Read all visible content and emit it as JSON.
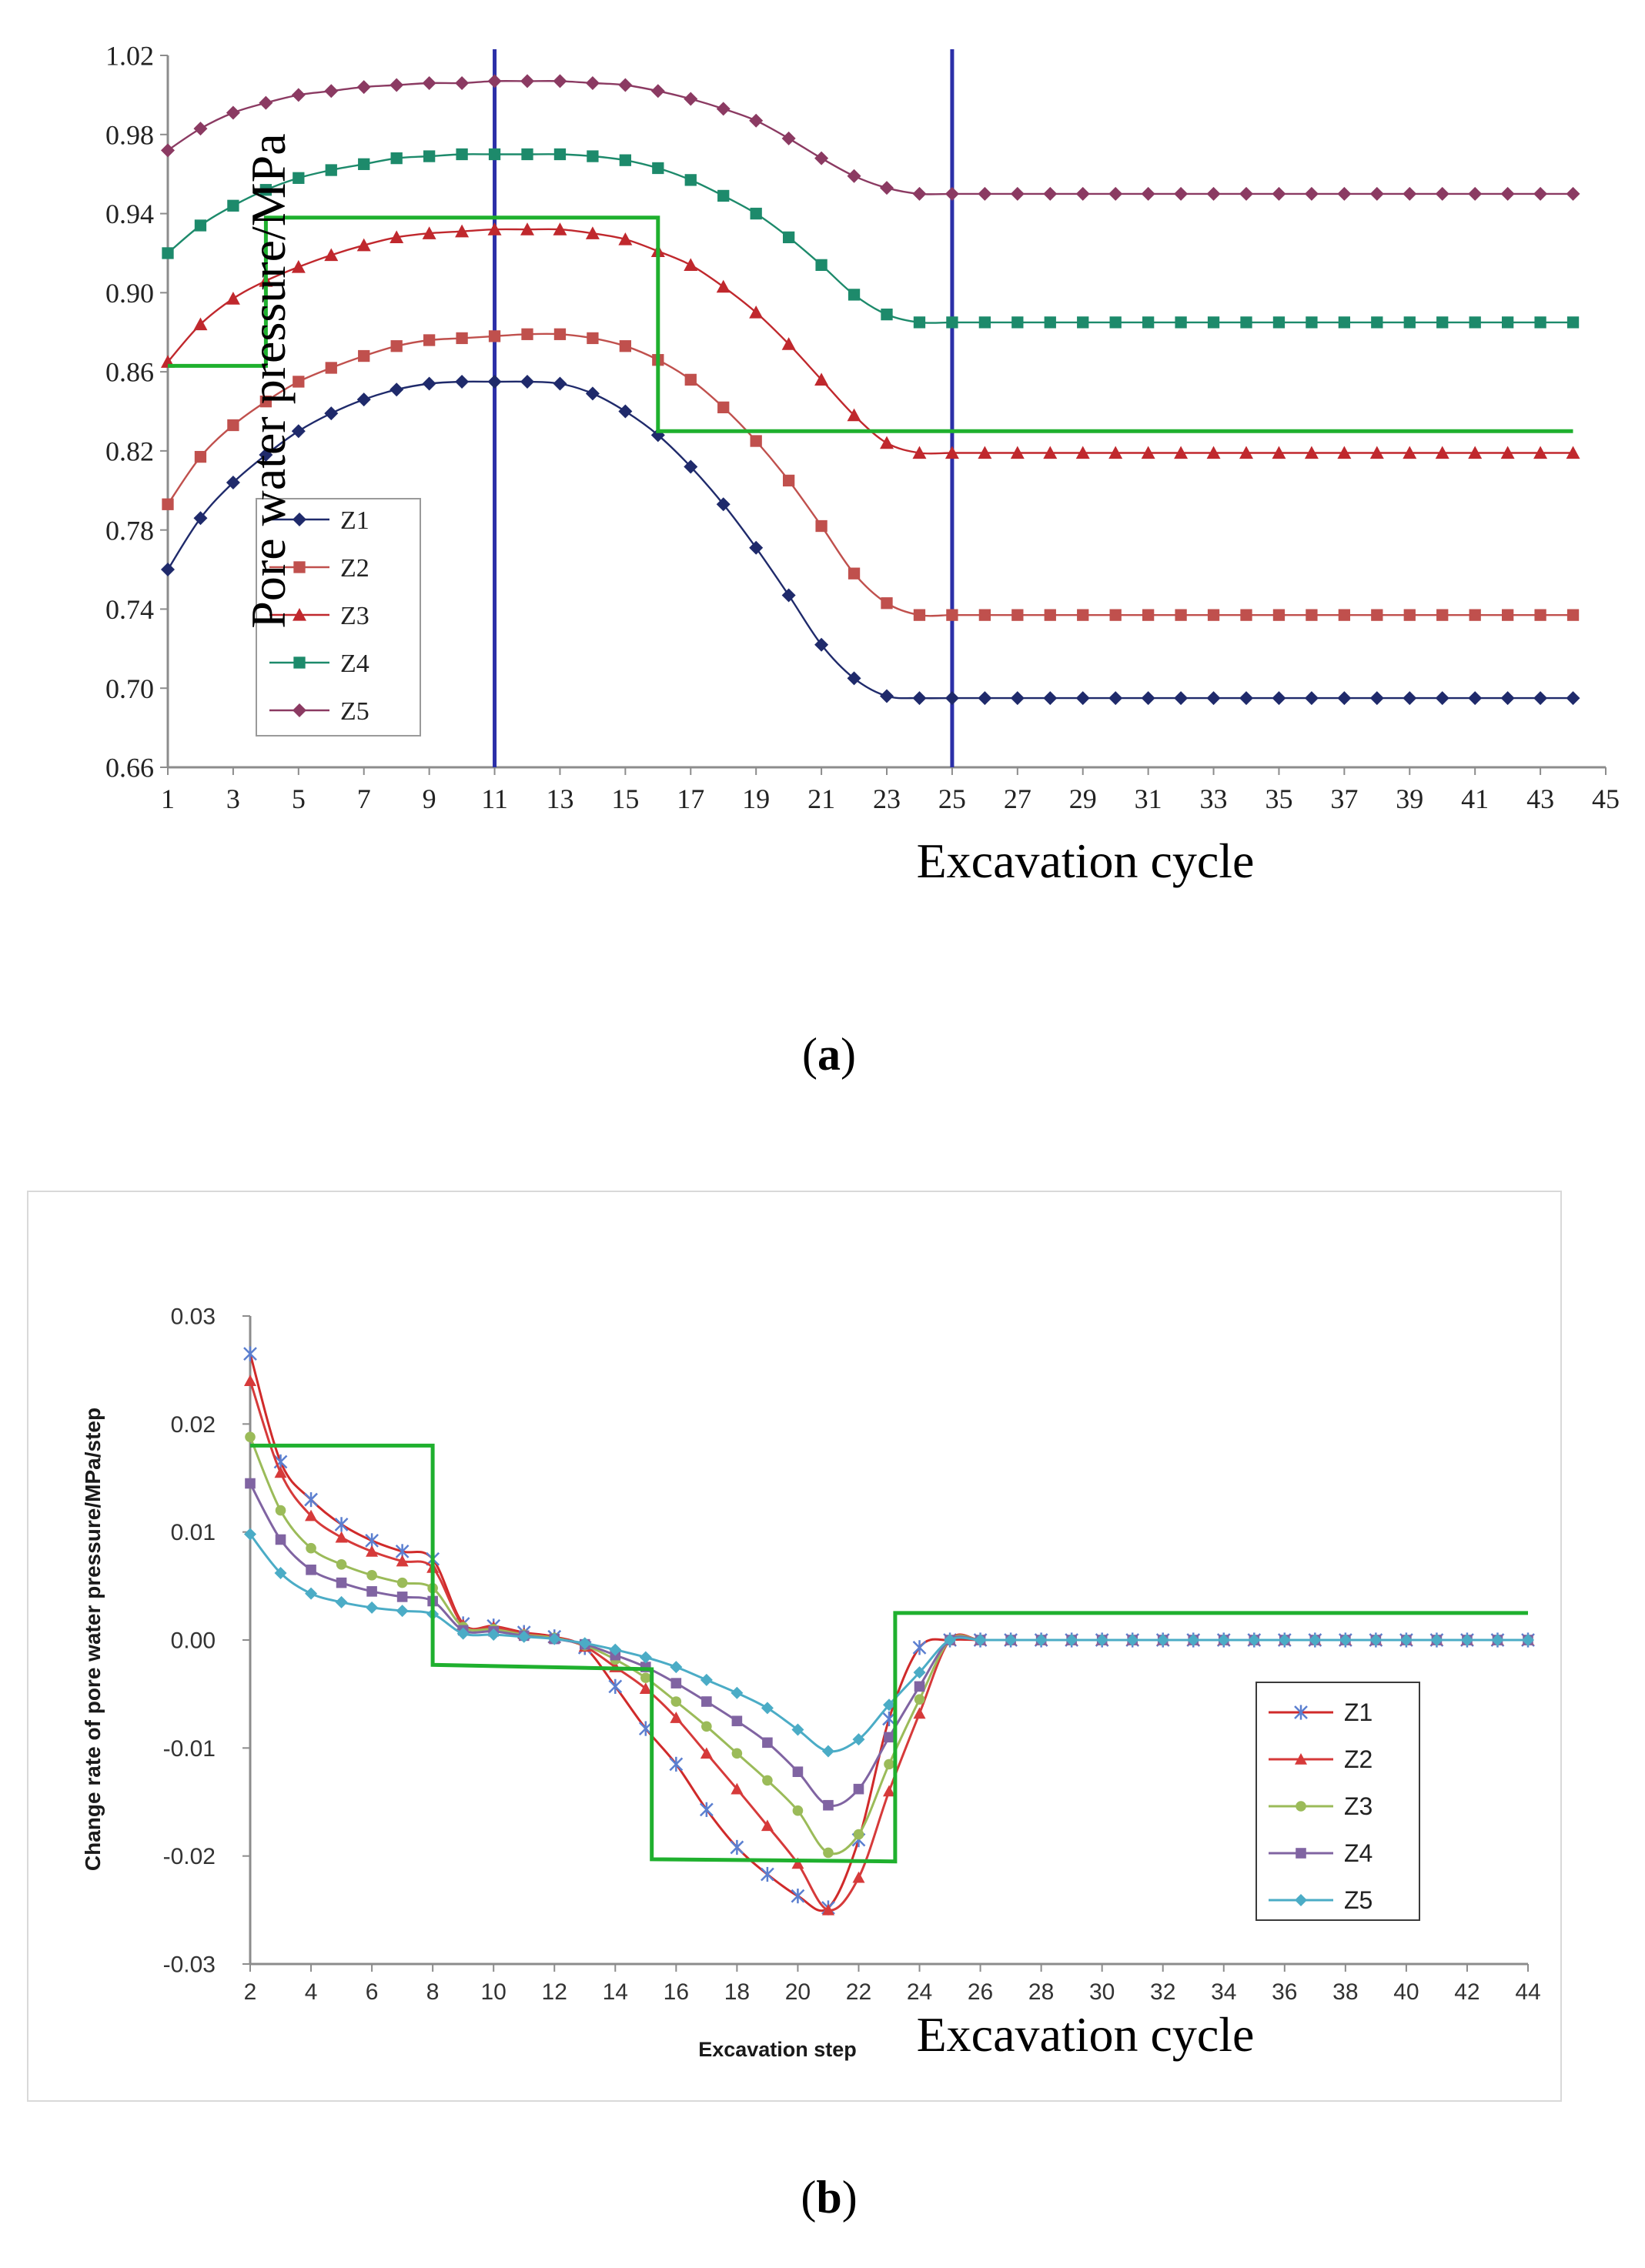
{
  "chart_data": [
    {
      "type": "line",
      "panel_label": "a",
      "caption_open": "(",
      "caption_close": ")",
      "ylabel": "Pore water pressure/MPa",
      "xlabel": "Excavation cycle",
      "xlim": [
        1,
        45
      ],
      "ylim": [
        0.66,
        1.02
      ],
      "x_ticks": [
        "1",
        "3",
        "5",
        "7",
        "9",
        "11",
        "13",
        "15",
        "17",
        "19",
        "21",
        "23",
        "25",
        "27",
        "29",
        "31",
        "33",
        "35",
        "37",
        "39",
        "41",
        "43",
        "45"
      ],
      "y_ticks": [
        "0.66",
        "0.70",
        "0.74",
        "0.78",
        "0.82",
        "0.86",
        "0.90",
        "0.94",
        "0.98",
        "1.02"
      ],
      "x": [
        1,
        2,
        3,
        4,
        5,
        6,
        7,
        8,
        9,
        10,
        11,
        12,
        13,
        14,
        15,
        16,
        17,
        18,
        19,
        20,
        21,
        22,
        23,
        24,
        25,
        26,
        27,
        28,
        29,
        30,
        31,
        32,
        33,
        34,
        35,
        36,
        37,
        38,
        39,
        40,
        41,
        42,
        43,
        44
      ],
      "vlines": [
        11,
        25
      ],
      "step_line": {
        "x": [
          1,
          4,
          4,
          16,
          16,
          44
        ],
        "y": [
          0.863,
          0.863,
          0.938,
          0.938,
          0.83,
          0.83
        ],
        "color": "#1fb02e"
      },
      "legend_position": "lower-left",
      "series": [
        {
          "name": "Z1",
          "color": "#1f2a6b",
          "marker": "diamond",
          "values": [
            0.76,
            0.786,
            0.804,
            0.818,
            0.83,
            0.839,
            0.846,
            0.851,
            0.854,
            0.855,
            0.855,
            0.855,
            0.854,
            0.849,
            0.84,
            0.828,
            0.812,
            0.793,
            0.771,
            0.747,
            0.722,
            0.705,
            0.696,
            0.695,
            0.695,
            0.695,
            0.695,
            0.695,
            0.695,
            0.695,
            0.695,
            0.695,
            0.695,
            0.695,
            0.695,
            0.695,
            0.695,
            0.695,
            0.695,
            0.695,
            0.695,
            0.695,
            0.695,
            0.695
          ]
        },
        {
          "name": "Z2",
          "color": "#c0504d",
          "marker": "square",
          "values": [
            0.793,
            0.817,
            0.833,
            0.845,
            0.855,
            0.862,
            0.868,
            0.873,
            0.876,
            0.877,
            0.878,
            0.879,
            0.879,
            0.877,
            0.873,
            0.866,
            0.856,
            0.842,
            0.825,
            0.805,
            0.782,
            0.758,
            0.743,
            0.737,
            0.737,
            0.737,
            0.737,
            0.737,
            0.737,
            0.737,
            0.737,
            0.737,
            0.737,
            0.737,
            0.737,
            0.737,
            0.737,
            0.737,
            0.737,
            0.737,
            0.737,
            0.737,
            0.737,
            0.737
          ]
        },
        {
          "name": "Z3",
          "color": "#c0282d",
          "marker": "triangle",
          "values": [
            0.865,
            0.884,
            0.897,
            0.906,
            0.913,
            0.919,
            0.924,
            0.928,
            0.93,
            0.931,
            0.932,
            0.932,
            0.932,
            0.93,
            0.927,
            0.921,
            0.914,
            0.903,
            0.89,
            0.874,
            0.856,
            0.838,
            0.824,
            0.819,
            0.819,
            0.819,
            0.819,
            0.819,
            0.819,
            0.819,
            0.819,
            0.819,
            0.819,
            0.819,
            0.819,
            0.819,
            0.819,
            0.819,
            0.819,
            0.819,
            0.819,
            0.819,
            0.819,
            0.819
          ]
        },
        {
          "name": "Z4",
          "color": "#1d8a6b",
          "marker": "square",
          "values": [
            0.92,
            0.934,
            0.944,
            0.952,
            0.958,
            0.962,
            0.965,
            0.968,
            0.969,
            0.97,
            0.97,
            0.97,
            0.97,
            0.969,
            0.967,
            0.963,
            0.957,
            0.949,
            0.94,
            0.928,
            0.914,
            0.899,
            0.889,
            0.885,
            0.885,
            0.885,
            0.885,
            0.885,
            0.885,
            0.885,
            0.885,
            0.885,
            0.885,
            0.885,
            0.885,
            0.885,
            0.885,
            0.885,
            0.885,
            0.885,
            0.885,
            0.885,
            0.885,
            0.885
          ]
        },
        {
          "name": "Z5",
          "color": "#8b3a62",
          "marker": "diamond",
          "values": [
            0.972,
            0.983,
            0.991,
            0.996,
            1.0,
            1.002,
            1.004,
            1.005,
            1.006,
            1.006,
            1.007,
            1.007,
            1.007,
            1.006,
            1.005,
            1.002,
            0.998,
            0.993,
            0.987,
            0.978,
            0.968,
            0.959,
            0.953,
            0.95,
            0.95,
            0.95,
            0.95,
            0.95,
            0.95,
            0.95,
            0.95,
            0.95,
            0.95,
            0.95,
            0.95,
            0.95,
            0.95,
            0.95,
            0.95,
            0.95,
            0.95,
            0.95,
            0.95,
            0.95
          ]
        }
      ]
    },
    {
      "type": "line",
      "panel_label": "b",
      "caption_open": "(",
      "caption_close": ")",
      "ylabel": "Change rate of pore water pressure/MPa/step",
      "xlabel": "Excavation step",
      "xlabel_overlay": "Excavation cycle",
      "xlim": [
        2,
        44
      ],
      "ylim": [
        -0.03,
        0.03
      ],
      "x_ticks": [
        "2",
        "4",
        "6",
        "8",
        "10",
        "12",
        "14",
        "16",
        "18",
        "20",
        "22",
        "24",
        "26",
        "28",
        "30",
        "32",
        "34",
        "36",
        "38",
        "40",
        "42",
        "44"
      ],
      "y_ticks": [
        "-0.03",
        "-0.02",
        "-0.01",
        "0.00",
        "0.01",
        "0.02",
        "0.03"
      ],
      "x": [
        2,
        3,
        4,
        5,
        6,
        7,
        8,
        9,
        10,
        11,
        12,
        13,
        14,
        15,
        16,
        17,
        18,
        19,
        20,
        21,
        22,
        23,
        24,
        25,
        26,
        27,
        28,
        29,
        30,
        31,
        32,
        33,
        34,
        35,
        36,
        37,
        38,
        39,
        40,
        41,
        42,
        43,
        44
      ],
      "step_line": {
        "x": [
          2,
          8,
          8,
          15.2,
          15.2,
          23.2,
          23.2,
          44
        ],
        "y": [
          0.018,
          0.018,
          -0.0023,
          -0.0027,
          -0.0203,
          -0.0205,
          0.0025,
          0.0025
        ],
        "color": "#1fb02e"
      },
      "legend_position": "lower-right",
      "series": [
        {
          "name": "Z1",
          "color": "#d02a2a",
          "marker": "star",
          "marker_color": "#5b7fd0",
          "values": [
            0.0265,
            0.0165,
            0.013,
            0.0107,
            0.0092,
            0.0082,
            0.0075,
            0.0015,
            0.0013,
            0.0007,
            0.0003,
            -0.0007,
            -0.0043,
            -0.0082,
            -0.0115,
            -0.0157,
            -0.0192,
            -0.0217,
            -0.0237,
            -0.0248,
            -0.0185,
            -0.0073,
            -0.0007,
            0,
            0,
            0,
            0,
            0,
            0,
            0,
            0,
            0,
            0,
            0,
            0,
            0,
            0,
            0,
            0,
            0,
            0,
            0,
            0
          ]
        },
        {
          "name": "Z2",
          "color": "#d63a3a",
          "marker": "triangle",
          "values": [
            0.024,
            0.0155,
            0.0115,
            0.0095,
            0.0082,
            0.0073,
            0.0067,
            0.0014,
            0.0012,
            0.0006,
            0.0002,
            -0.0006,
            -0.0025,
            -0.0045,
            -0.0072,
            -0.0105,
            -0.0138,
            -0.0172,
            -0.0207,
            -0.025,
            -0.022,
            -0.014,
            -0.0068,
            0,
            0,
            0,
            0,
            0,
            0,
            0,
            0,
            0,
            0,
            0,
            0,
            0,
            0,
            0,
            0,
            0,
            0,
            0,
            0
          ]
        },
        {
          "name": "Z3",
          "color": "#9bbb59",
          "marker": "circle",
          "values": [
            0.0188,
            0.012,
            0.0085,
            0.007,
            0.006,
            0.0053,
            0.0048,
            0.0012,
            0.001,
            0.0005,
            0.0002,
            -0.0005,
            -0.0018,
            -0.0035,
            -0.0057,
            -0.008,
            -0.0105,
            -0.013,
            -0.0158,
            -0.0197,
            -0.018,
            -0.0115,
            -0.0055,
            0,
            0,
            0,
            0,
            0,
            0,
            0,
            0,
            0,
            0,
            0,
            0,
            0,
            0,
            0,
            0,
            0,
            0,
            0,
            0
          ]
        },
        {
          "name": "Z4",
          "color": "#8064a2",
          "marker": "square",
          "values": [
            0.0145,
            0.0093,
            0.0065,
            0.0053,
            0.0045,
            0.004,
            0.0036,
            0.0009,
            0.0008,
            0.0004,
            0.0001,
            -0.0004,
            -0.0014,
            -0.0025,
            -0.004,
            -0.0057,
            -0.0075,
            -0.0095,
            -0.0122,
            -0.0153,
            -0.0138,
            -0.009,
            -0.0043,
            0,
            0,
            0,
            0,
            0,
            0,
            0,
            0,
            0,
            0,
            0,
            0,
            0,
            0,
            0,
            0,
            0,
            0,
            0,
            0
          ]
        },
        {
          "name": "Z5",
          "color": "#4bacc6",
          "marker": "diamond",
          "values": [
            0.0098,
            0.0062,
            0.0043,
            0.0035,
            0.003,
            0.0027,
            0.0024,
            0.0006,
            0.0005,
            0.0003,
            0.0001,
            -0.0003,
            -0.0009,
            -0.0016,
            -0.0025,
            -0.0037,
            -0.0049,
            -0.0063,
            -0.0083,
            -0.0103,
            -0.0092,
            -0.006,
            -0.003,
            0,
            0,
            0,
            0,
            0,
            0,
            0,
            0,
            0,
            0,
            0,
            0,
            0,
            0,
            0,
            0,
            0,
            0,
            0,
            0
          ]
        }
      ]
    }
  ]
}
